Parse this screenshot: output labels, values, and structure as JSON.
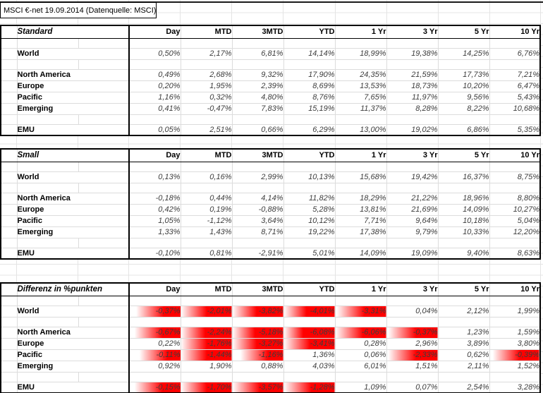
{
  "sheet_title": "MSCI €-net 19.09.2014 (Datenquelle: MSCI)",
  "columns": [
    "Day",
    "MTD",
    "3MTD",
    "YTD",
    "1 Yr",
    "3 Yr",
    "5 Yr",
    "10 Yr"
  ],
  "heat_color": "#ff0000",
  "tables": [
    {
      "title": "Standard",
      "rows": [
        {
          "label": "World",
          "values": [
            "0,50%",
            "2,17%",
            "6,81%",
            "14,14%",
            "18,99%",
            "19,38%",
            "14,25%",
            "6,76%"
          ]
        },
        {
          "label": "North America",
          "values": [
            "0,49%",
            "2,68%",
            "9,32%",
            "17,90%",
            "24,35%",
            "21,59%",
            "17,73%",
            "7,21%"
          ]
        },
        {
          "label": "Europe",
          "values": [
            "0,20%",
            "1,95%",
            "2,39%",
            "8,69%",
            "13,53%",
            "18,73%",
            "10,20%",
            "6,47%"
          ]
        },
        {
          "label": "Pacific",
          "values": [
            "1,16%",
            "0,32%",
            "4,80%",
            "8,76%",
            "7,65%",
            "11,97%",
            "9,56%",
            "5,43%"
          ]
        },
        {
          "label": "Emerging",
          "values": [
            "0,41%",
            "-0,47%",
            "7,83%",
            "15,19%",
            "11,37%",
            "8,28%",
            "8,22%",
            "10,68%"
          ]
        },
        {
          "label": "EMU",
          "values": [
            "0,05%",
            "2,51%",
            "0,66%",
            "6,29%",
            "13,00%",
            "19,02%",
            "6,86%",
            "5,35%"
          ]
        }
      ]
    },
    {
      "title": "Small",
      "rows": [
        {
          "label": "World",
          "values": [
            "0,13%",
            "0,16%",
            "2,99%",
            "10,13%",
            "15,68%",
            "19,42%",
            "16,37%",
            "8,75%"
          ]
        },
        {
          "label": "North America",
          "values": [
            "-0,18%",
            "0,44%",
            "4,14%",
            "11,82%",
            "18,29%",
            "21,22%",
            "18,96%",
            "8,80%"
          ]
        },
        {
          "label": "Europe",
          "values": [
            "0,42%",
            "0,19%",
            "-0,88%",
            "5,28%",
            "13,81%",
            "21,69%",
            "14,09%",
            "10,27%"
          ]
        },
        {
          "label": "Pacific",
          "values": [
            "1,05%",
            "-1,12%",
            "3,64%",
            "10,12%",
            "7,71%",
            "9,64%",
            "10,18%",
            "5,04%"
          ]
        },
        {
          "label": "Emerging",
          "values": [
            "1,33%",
            "1,43%",
            "8,71%",
            "19,22%",
            "17,38%",
            "9,79%",
            "10,33%",
            "12,20%"
          ]
        },
        {
          "label": "EMU",
          "values": [
            "-0,10%",
            "0,81%",
            "-2,91%",
            "5,01%",
            "14,09%",
            "19,09%",
            "9,40%",
            "8,63%"
          ]
        }
      ]
    },
    {
      "title": "Differenz in %punkten",
      "rows": [
        {
          "label": "World",
          "values": [
            "-0,37%",
            "-2,01%",
            "-3,82%",
            "-4,01%",
            "-3,31%",
            "0,04%",
            "2,12%",
            "1,99%"
          ],
          "heat": [
            0.5,
            0.75,
            0.8,
            0.85,
            0.65,
            0,
            0,
            0
          ]
        },
        {
          "label": "North America",
          "values": [
            "-0,67%",
            "-2,24%",
            "-5,18%",
            "-6,08%",
            "-6,06%",
            "-0,37%",
            "1,23%",
            "1,59%"
          ],
          "heat": [
            0.55,
            0.8,
            0.85,
            0.95,
            0.7,
            0.65,
            0,
            0
          ]
        },
        {
          "label": "Europe",
          "values": [
            "0,22%",
            "-1,76%",
            "-3,27%",
            "-3,41%",
            "0,28%",
            "2,96%",
            "3,89%",
            "3,80%"
          ],
          "heat": [
            0,
            0.75,
            0.8,
            0.75,
            0,
            0,
            0,
            0
          ]
        },
        {
          "label": "Pacific",
          "values": [
            "-0,11%",
            "-1,44%",
            "-1,16%",
            "1,36%",
            "0,06%",
            "-2,33%",
            "0,62%",
            "-0,39%"
          ],
          "heat": [
            0.4,
            0.75,
            0.45,
            0,
            0,
            0.65,
            0,
            0.6
          ]
        },
        {
          "label": "Emerging",
          "values": [
            "0,92%",
            "1,90%",
            "0,88%",
            "4,03%",
            "6,01%",
            "1,51%",
            "2,11%",
            "1,52%"
          ],
          "heat": [
            0,
            0,
            0,
            0,
            0,
            0,
            0,
            0
          ]
        },
        {
          "label": "EMU",
          "values": [
            "-0,15%",
            "-1,70%",
            "-3,57%",
            "-1,28%",
            "1,09%",
            "0,07%",
            "2,54%",
            "3,28%"
          ],
          "heat": [
            0.55,
            0.75,
            0.7,
            0.7,
            0,
            0,
            0,
            0
          ]
        }
      ]
    }
  ]
}
